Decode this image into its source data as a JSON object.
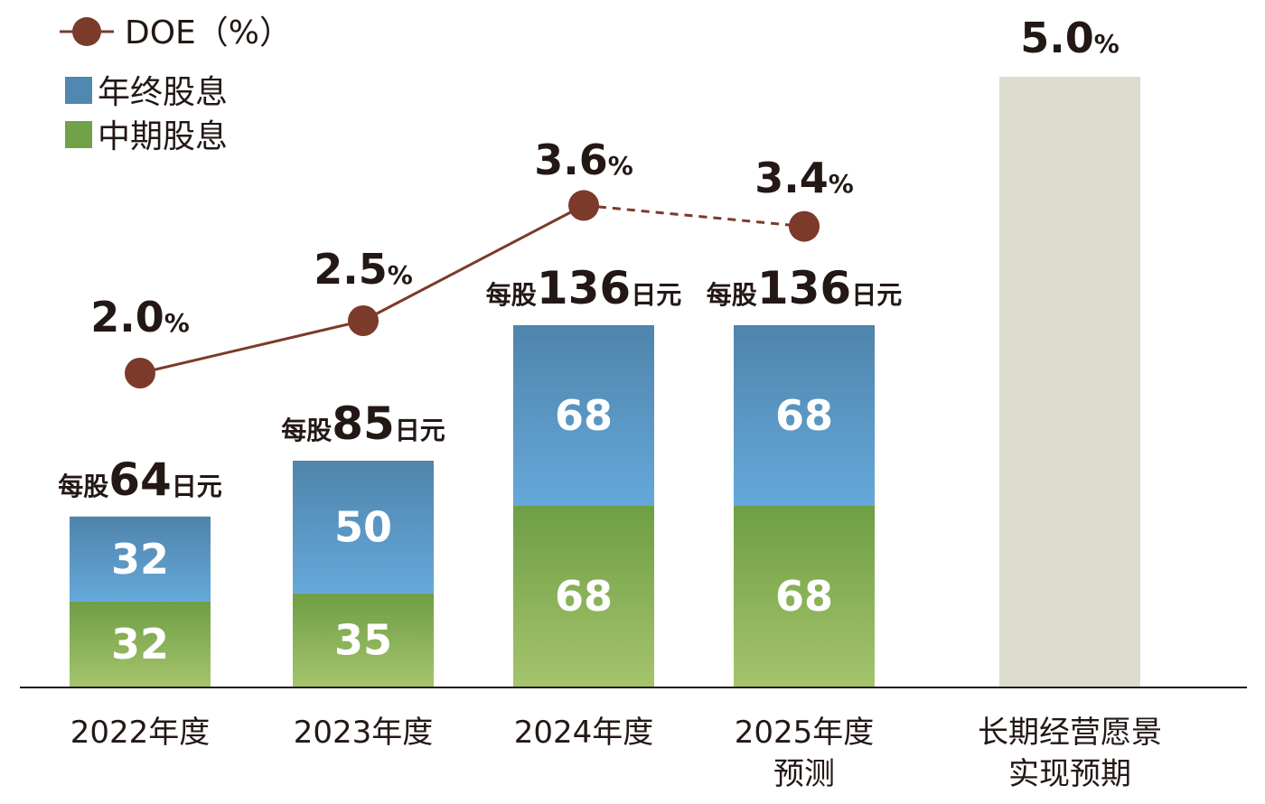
{
  "chart_data": {
    "type": "bar",
    "stacked": true,
    "categories": [
      "2022年度",
      "2023年度",
      "2024年度",
      "2025年度\n预测",
      "长期经营愿景\n实现预期"
    ],
    "series": [
      {
        "name": "中期股息",
        "values": [
          32,
          35,
          68,
          68,
          null
        ],
        "color": "#72a148"
      },
      {
        "name": "年终股息",
        "values": [
          32,
          50,
          68,
          68,
          null
        ],
        "color": "#5088b0"
      }
    ],
    "totals": [
      64,
      85,
      136,
      136,
      null
    ],
    "total_label_prefix": "每股",
    "total_label_suffix": "日元",
    "line": {
      "name": "DOE（%）",
      "values": [
        2.0,
        2.5,
        3.6,
        3.4,
        5.0
      ],
      "labels": [
        "2.0",
        "2.5",
        "3.6",
        "3.4",
        "5.0"
      ],
      "unit": "%",
      "color": "#7b3a2a",
      "dashed_from_index": 2
    },
    "target_bar_color": "#dcdccf",
    "legend": [
      "DOE（%）",
      "年终股息",
      "中期股息"
    ],
    "legend_placement": "top-left",
    "grid": false,
    "title": "",
    "xlabel": "",
    "ylabel": ""
  }
}
